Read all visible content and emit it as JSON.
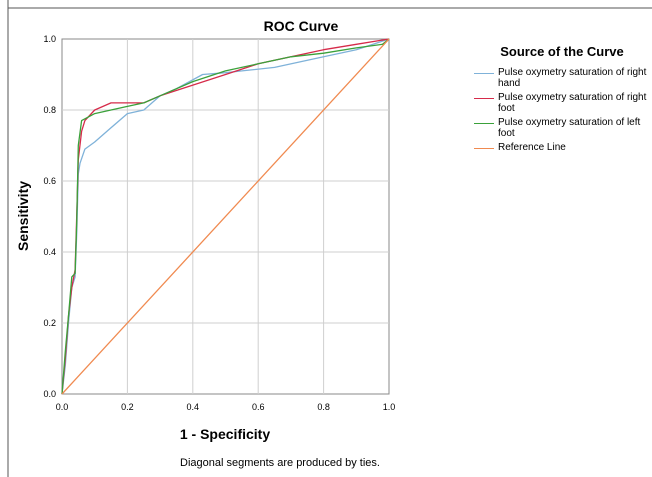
{
  "chart_data": {
    "type": "line",
    "title": "ROC Curve",
    "xlabel": "1 - Specificity",
    "ylabel": "Sensitivity",
    "xlim": [
      0,
      1
    ],
    "ylim": [
      0,
      1
    ],
    "xticks": [
      "0.0",
      "0.2",
      "0.4",
      "0.6",
      "0.8",
      "1.0"
    ],
    "yticks": [
      "0.0",
      "0.2",
      "0.4",
      "0.6",
      "0.8",
      "1.0"
    ],
    "grid": true,
    "legend_title": "Source of the Curve",
    "legend_position": "right",
    "note": "Diagonal segments are produced by ties.",
    "series": [
      {
        "name": "Pulse oxymetry saturation of right hand",
        "color": "#7fb2d9",
        "x": [
          0,
          0.01,
          0.02,
          0.03,
          0.04,
          0.045,
          0.05,
          0.055,
          0.07,
          0.1,
          0.15,
          0.2,
          0.25,
          0.3,
          0.35,
          0.43,
          0.5,
          0.55,
          0.65,
          0.8,
          0.9,
          1.0
        ],
        "y": [
          0,
          0.08,
          0.2,
          0.3,
          0.33,
          0.45,
          0.62,
          0.65,
          0.69,
          0.71,
          0.75,
          0.79,
          0.8,
          0.84,
          0.86,
          0.9,
          0.905,
          0.91,
          0.92,
          0.95,
          0.97,
          1.0
        ]
      },
      {
        "name": "Pulse oxymetry saturation of right foot",
        "color": "#d62b4a",
        "x": [
          0,
          0.01,
          0.02,
          0.03,
          0.04,
          0.045,
          0.05,
          0.06,
          0.07,
          0.1,
          0.15,
          0.2,
          0.25,
          0.3,
          0.4,
          0.5,
          0.6,
          0.7,
          0.8,
          0.9,
          1.0
        ],
        "y": [
          0,
          0.1,
          0.22,
          0.3,
          0.35,
          0.5,
          0.66,
          0.74,
          0.77,
          0.8,
          0.82,
          0.82,
          0.82,
          0.84,
          0.87,
          0.9,
          0.93,
          0.95,
          0.97,
          0.985,
          1.0
        ]
      },
      {
        "name": "Pulse oxymetry saturation of left foot",
        "color": "#3aa13a",
        "x": [
          0,
          0.01,
          0.02,
          0.03,
          0.04,
          0.045,
          0.05,
          0.06,
          0.08,
          0.1,
          0.15,
          0.2,
          0.25,
          0.3,
          0.4,
          0.5,
          0.6,
          0.7,
          0.8,
          0.9,
          0.98,
          1.0
        ],
        "y": [
          0,
          0.12,
          0.22,
          0.33,
          0.34,
          0.48,
          0.7,
          0.77,
          0.78,
          0.79,
          0.8,
          0.81,
          0.82,
          0.84,
          0.88,
          0.91,
          0.93,
          0.95,
          0.96,
          0.975,
          0.985,
          1.0
        ]
      },
      {
        "name": "Reference Line",
        "color": "#f08a50",
        "x": [
          0,
          1
        ],
        "y": [
          0,
          1
        ]
      }
    ]
  }
}
